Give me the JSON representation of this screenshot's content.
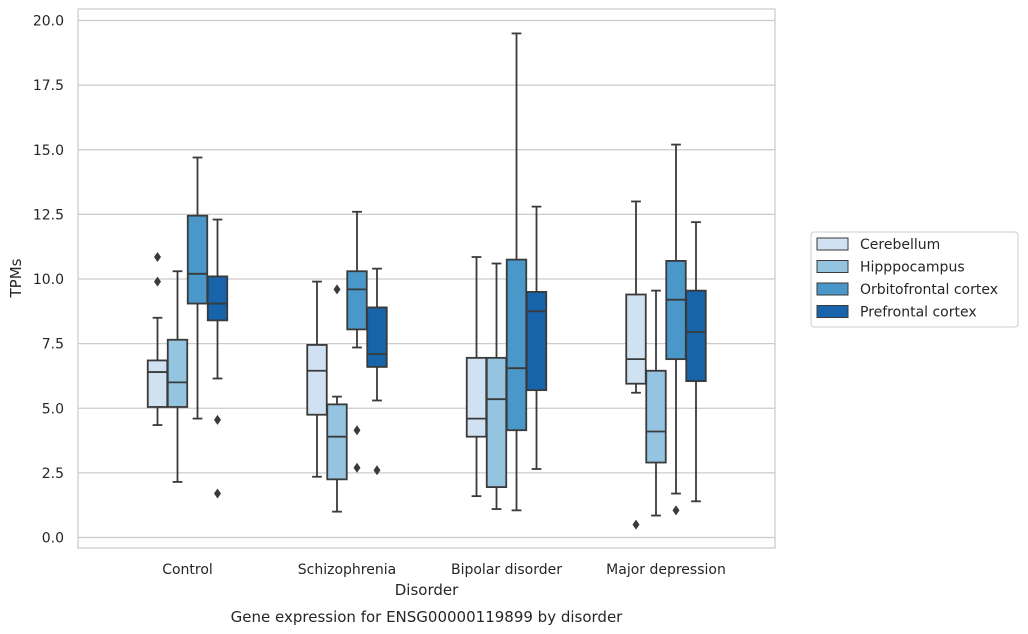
{
  "chart_data": {
    "type": "boxplot",
    "title": "Gene expression for ENSG00000119899 by disorder",
    "xlabel": "Disorder",
    "ylabel": "TPMs",
    "ylim": [
      -0.4,
      20.5
    ],
    "yticks": [
      "0.0",
      "2.5",
      "5.0",
      "7.5",
      "10.0",
      "12.5",
      "15.0",
      "17.5",
      "20.0"
    ],
    "grid": "horizontal",
    "legend_position": "right",
    "categories": [
      "Control",
      "Schizophrenia",
      "Bipolar disorder",
      "Major depression"
    ],
    "series": [
      {
        "name": "Cerebellum",
        "color": "#d0e1f2",
        "boxes": [
          {
            "whislo": 4.35,
            "q1": 5.05,
            "med": 6.4,
            "q3": 6.85,
            "whishi": 8.5,
            "fliers": [
              9.9,
              10.85
            ]
          },
          {
            "whislo": 2.35,
            "q1": 4.75,
            "med": 6.45,
            "q3": 7.45,
            "whishi": 9.9,
            "fliers": []
          },
          {
            "whislo": 1.6,
            "q1": 3.9,
            "med": 4.6,
            "q3": 6.95,
            "whishi": 10.85,
            "fliers": []
          },
          {
            "whislo": 5.6,
            "q1": 5.95,
            "med": 6.9,
            "q3": 9.4,
            "whishi": 13.0,
            "fliers": [
              0.5
            ]
          }
        ]
      },
      {
        "name": "Hipppocampus",
        "color": "#94c4df",
        "boxes": [
          {
            "whislo": 2.15,
            "q1": 5.05,
            "med": 6.0,
            "q3": 7.65,
            "whishi": 10.3,
            "fliers": []
          },
          {
            "whislo": 1.0,
            "q1": 2.25,
            "med": 3.9,
            "q3": 5.15,
            "whishi": 5.45,
            "fliers": [
              9.6
            ]
          },
          {
            "whislo": 1.1,
            "q1": 1.95,
            "med": 5.35,
            "q3": 6.95,
            "whishi": 10.6,
            "fliers": []
          },
          {
            "whislo": 0.85,
            "q1": 2.9,
            "med": 4.1,
            "q3": 6.45,
            "whishi": 9.55,
            "fliers": []
          }
        ]
      },
      {
        "name": "Orbitofrontal cortex",
        "color": "#4a98c9",
        "boxes": [
          {
            "whislo": 4.6,
            "q1": 9.05,
            "med": 10.2,
            "q3": 12.45,
            "whishi": 14.7,
            "fliers": []
          },
          {
            "whislo": 7.35,
            "q1": 8.05,
            "med": 9.6,
            "q3": 10.3,
            "whishi": 12.6,
            "fliers": [
              4.15,
              2.7
            ]
          },
          {
            "whislo": 1.05,
            "q1": 4.15,
            "med": 6.55,
            "q3": 10.75,
            "whishi": 19.5,
            "fliers": []
          },
          {
            "whislo": 1.7,
            "q1": 6.9,
            "med": 9.2,
            "q3": 10.7,
            "whishi": 15.2,
            "fliers": [
              1.05
            ]
          }
        ]
      },
      {
        "name": "Prefrontal cortex",
        "color": "#1764ab",
        "boxes": [
          {
            "whislo": 6.15,
            "q1": 8.4,
            "med": 9.05,
            "q3": 10.1,
            "whishi": 12.3,
            "fliers": [
              4.55,
              1.7
            ]
          },
          {
            "whislo": 5.3,
            "q1": 6.6,
            "med": 7.1,
            "q3": 8.9,
            "whishi": 10.4,
            "fliers": [
              2.6
            ]
          },
          {
            "whislo": 2.65,
            "q1": 5.7,
            "med": 8.75,
            "q3": 9.5,
            "whishi": 12.8,
            "fliers": []
          },
          {
            "whislo": 1.4,
            "q1": 6.05,
            "med": 7.95,
            "q3": 9.55,
            "whishi": 12.2,
            "fliers": []
          }
        ]
      }
    ]
  }
}
